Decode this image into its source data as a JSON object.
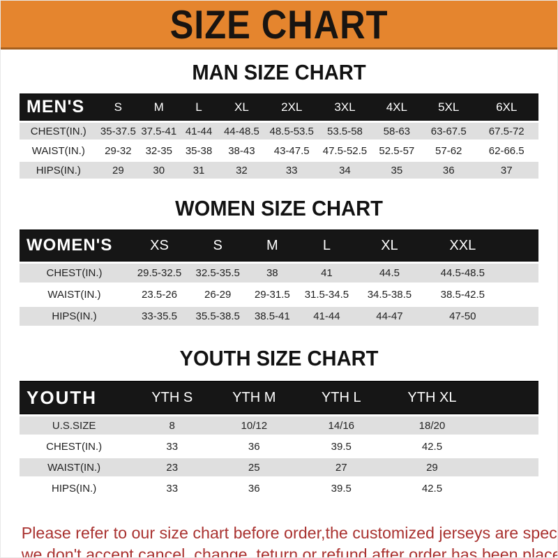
{
  "banner": {
    "title": "SIZE CHART"
  },
  "tables": [
    {
      "id": "mens",
      "heading": "MAN SIZE CHART",
      "header_label": "MEN'S",
      "columns": [
        "S",
        "M",
        "L",
        "XL",
        "2XL",
        "3XL",
        "4XL",
        "5XL",
        "6XL"
      ],
      "rows": [
        {
          "label": "CHEST(IN.)",
          "values": [
            "35-37.5",
            "37.5-41",
            "41-44",
            "44-48.5",
            "48.5-53.5",
            "53.5-58",
            "58-63",
            "63-67.5",
            "67.5-72"
          ]
        },
        {
          "label": "WAIST(IN.)",
          "values": [
            "29-32",
            "32-35",
            "35-38",
            "38-43",
            "43-47.5",
            "47.5-52.5",
            "52.5-57",
            "57-62",
            "62-66.5"
          ]
        },
        {
          "label": "HIPS(IN.)",
          "values": [
            "29",
            "30",
            "31",
            "32",
            "33",
            "34",
            "35",
            "36",
            "37"
          ]
        }
      ]
    },
    {
      "id": "womens",
      "heading": "WOMEN SIZE CHART",
      "header_label": "WOMEN'S",
      "columns": [
        "XS",
        "S",
        "M",
        "L",
        "XL",
        "XXL"
      ],
      "rows": [
        {
          "label": "CHEST(IN.)",
          "values": [
            "29.5-32.5",
            "32.5-35.5",
            "38",
            "41",
            "44.5",
            "44.5-48.5"
          ]
        },
        {
          "label": "WAIST(IN.)",
          "values": [
            "23.5-26",
            "26-29",
            "29-31.5",
            "31.5-34.5",
            "34.5-38.5",
            "38.5-42.5"
          ]
        },
        {
          "label": "HIPS(IN.)",
          "values": [
            "33-35.5",
            "35.5-38.5",
            "38.5-41",
            "41-44",
            "44-47",
            "47-50"
          ]
        }
      ]
    },
    {
      "id": "youth",
      "heading": "YOUTH SIZE CHART",
      "header_label": "YOUTH",
      "columns": [
        "YTH S",
        "YTH M",
        "YTH L",
        "YTH XL"
      ],
      "rows": [
        {
          "label": "U.S.SIZE",
          "values": [
            "8",
            "10/12",
            "14/16",
            "18/20"
          ]
        },
        {
          "label": "CHEST(IN.)",
          "values": [
            "33",
            "36",
            "39.5",
            "42.5"
          ]
        },
        {
          "label": "WAIST(IN.)",
          "values": [
            "23",
            "25",
            "27",
            "29"
          ]
        },
        {
          "label": "HIPS(IN.)",
          "values": [
            "33",
            "36",
            "39.5",
            "42.5"
          ]
        }
      ]
    }
  ],
  "footer": {
    "line1": "Please refer to our size chart before order,the customized jerseys are special products,",
    "line2": "we don't accept cancel, change, teturn or refund after order has been placed!"
  },
  "colors": {
    "banner_orange": "#E5852E",
    "header_bar_black": "#161616",
    "stripe_gray": "#DFDFDF",
    "footer_red": "#A93230"
  }
}
